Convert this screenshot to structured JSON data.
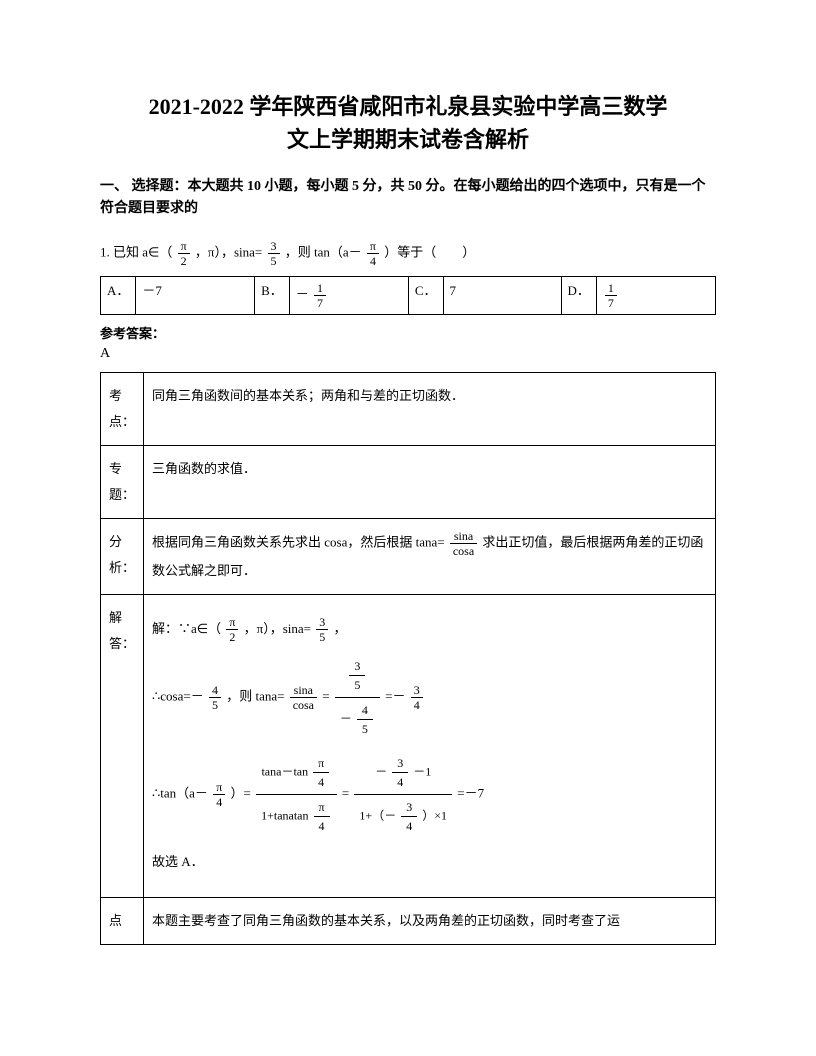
{
  "title_line1": "2021-2022 学年陕西省咸阳市礼泉县实验中学高三数学",
  "title_line2": "文上学期期末试卷含解析",
  "section_head": "一、 选择题：本大题共 10 小题，每小题 5 分，共 50 分。在每小题给出的四个选项中，只有是一个符合题目要求的",
  "q1": {
    "prefix": "1. 已知 a∈（",
    "interval_lo_num": "π",
    "interval_lo_den": "2",
    "mid1": "，π），sina=",
    "sina_num": "3",
    "sina_den": "5",
    "mid2": "，则 tan（a－",
    "arg_num": "π",
    "arg_den": "4",
    "suffix": "）等于（　　）"
  },
  "options": {
    "A_letter": "A．",
    "A_val": "－7",
    "B_letter": "B．",
    "B_num": "1",
    "B_den": "7",
    "B_sign": "－",
    "C_letter": "C．",
    "C_val": "7",
    "D_letter": "D．",
    "D_num": "1",
    "D_den": "7"
  },
  "answer_label": "参考答案：",
  "answer": "A",
  "analysis": {
    "kaodian_lbl": "考点：",
    "kaodian": "同角三角函数间的基本关系；两角和与差的正切函数．",
    "zhuanti_lbl": "专题：",
    "zhuanti": "三角函数的求值．",
    "fenxi_lbl": "分析：",
    "fenxi_prefix": "根据同角三角函数关系先求出 cosa，然后根据 tana=",
    "fenxi_frac_num": "sina",
    "fenxi_frac_den": "cosa",
    "fenxi_suffix": "求出正切值，最后根据两角差的正切函数公式解之即可．",
    "jieda_lbl": "解答：",
    "jieda_l1_prefix": "解：∵a∈（",
    "jieda_l1_mid": "，π），sina=",
    "jieda_l1_suffix": "，",
    "jieda_l2_prefix": "∴cosa=－",
    "jieda_l2_cos_num": "4",
    "jieda_l2_cos_den": "5",
    "jieda_l2_mid": "，则 tana=",
    "jieda_l2_tana_num": "sina",
    "jieda_l2_tana_den": "cosa",
    "jieda_l2_eq": "=",
    "jieda_l2_f2num_num": "3",
    "jieda_l2_f2num_den": "5",
    "jieda_l2_f2den_num": "4",
    "jieda_l2_f2den_den": "5",
    "jieda_l2_eq2": "=－",
    "jieda_l2_res_num": "3",
    "jieda_l2_res_den": "4",
    "jieda_l3_prefix": "∴tan（a－",
    "jieda_l3_mid": "）=",
    "jieda_l3_big1_num": "tana－tan",
    "jieda_l3_big1_den": "1+tanatan",
    "jieda_l3_eq": "=",
    "jieda_l3_big2_num_part1": "－",
    "jieda_l3_big2_num_num": "3",
    "jieda_l3_big2_num_den": "4",
    "jieda_l3_big2_num_part2": "－1",
    "jieda_l3_big2_den_part1": "1+（－",
    "jieda_l3_big2_den_num": "3",
    "jieda_l3_big2_den_den": "4",
    "jieda_l3_big2_den_part2": "）×1",
    "jieda_l3_result": "=－7",
    "jieda_l4": "故选 A．",
    "dianping_lbl": "点",
    "dianping": "本题主要考查了同角三角函数的基本关系，以及两角差的正切函数，同时考查了运"
  }
}
